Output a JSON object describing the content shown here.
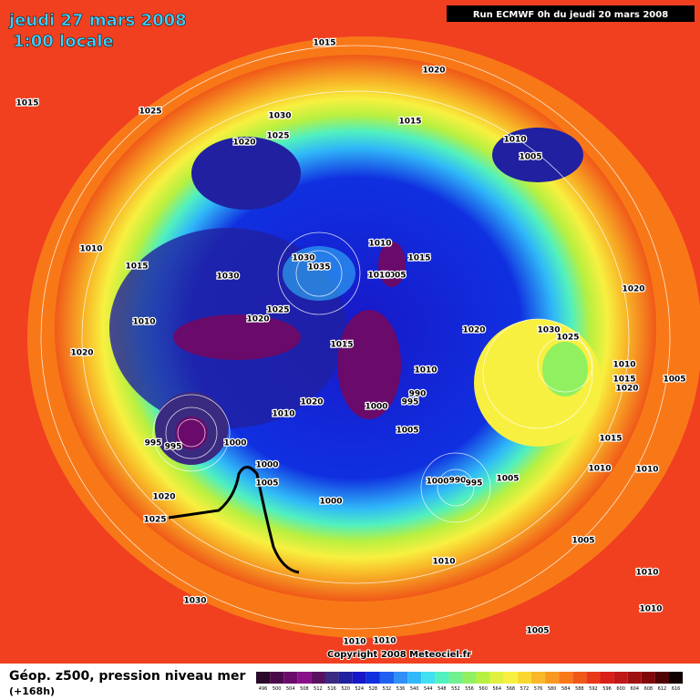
{
  "header": {
    "date": "jeudi 27 mars 2008",
    "time": "1:00 locale",
    "run": "Run ECMWF 0h du jeudi 20 mars 2008"
  },
  "isobars": [
    "1015",
    "1020",
    "1015",
    "1025",
    "1030",
    "1015",
    "1020",
    "1025",
    "1010",
    "1005",
    "1010",
    "1015",
    "1030",
    "1030",
    "1035",
    "1010",
    "1015",
    "1005",
    "1010",
    "1020",
    "1025",
    "1020",
    "1010",
    "1020",
    "1030",
    "1025",
    "1020",
    "1015",
    "1010",
    "1010",
    "1015",
    "1020",
    "1005",
    "990",
    "995",
    "1020",
    "1000",
    "1010",
    "1005",
    "995",
    "995",
    "1000",
    "1015",
    "1000",
    "1010",
    "1010",
    "1000",
    "990",
    "995",
    "1005",
    "1005",
    "1020",
    "1000",
    "1025",
    "1005",
    "1010",
    "1010",
    "1030",
    "1010",
    "1005",
    "1010",
    "1010"
  ],
  "copyright": "Copyright 2008 Meteociel.fr",
  "legend": {
    "title": "Géop. z500, pression niveau mer",
    "lead": "(+168h)"
  },
  "colorbar": {
    "labels": [
      496,
      500,
      504,
      508,
      512,
      516,
      520,
      524,
      528,
      532,
      536,
      540,
      544,
      548,
      552,
      556,
      560,
      564,
      568,
      572,
      576,
      580,
      584,
      588,
      592,
      596,
      600,
      604,
      608,
      612,
      616
    ],
    "colors": [
      "#2a0a2a",
      "#4a0a4a",
      "#6a0a6a",
      "#8a108a",
      "#5a1060",
      "#3a2a80",
      "#2020a0",
      "#1818c8",
      "#1030e0",
      "#2060f0",
      "#3090f8",
      "#30b8f8",
      "#40e0f0",
      "#50f0c0",
      "#70f090",
      "#90f060",
      "#b8f040",
      "#e0f040",
      "#f8f040",
      "#f8d830",
      "#f8b828",
      "#f89820",
      "#f87818",
      "#f05818",
      "#e83818",
      "#d82018",
      "#c01818",
      "#a01010",
      "#800808",
      "#500404",
      "#100000"
    ]
  }
}
